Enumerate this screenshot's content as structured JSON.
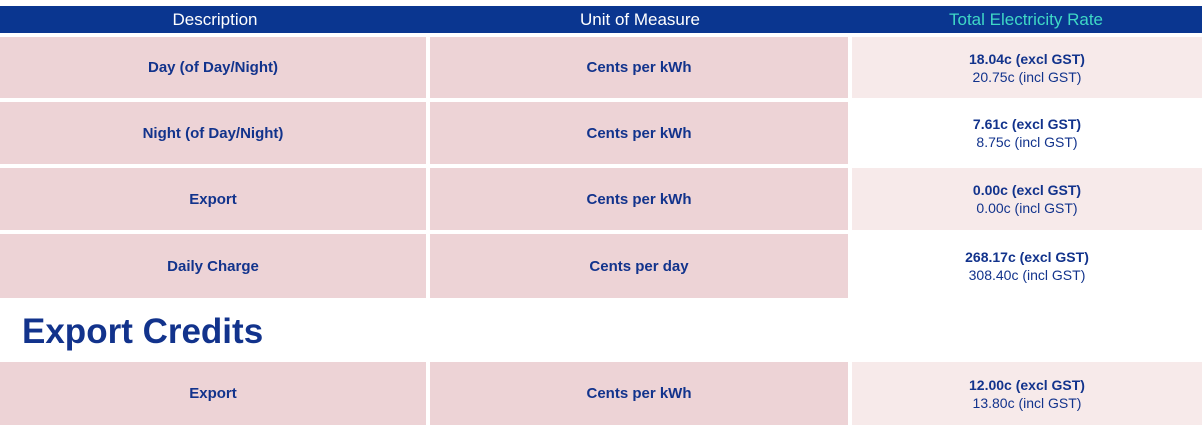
{
  "header": {
    "description": "Description",
    "unit": "Unit of Measure",
    "rate": "Total Electricity Rate"
  },
  "rows": [
    {
      "description": "Day (of Day/Night)",
      "unit": "Cents per kWh",
      "excl": "18.04c (excl GST)",
      "incl": "20.75c (incl GST)"
    },
    {
      "description": "Night (of Day/Night)",
      "unit": "Cents per kWh",
      "excl": "7.61c (excl GST)",
      "incl": "8.75c (incl GST)"
    },
    {
      "description": "Export",
      "unit": "Cents per kWh",
      "excl": "0.00c (excl GST)",
      "incl": "0.00c (incl GST)"
    },
    {
      "description": "Daily Charge",
      "unit": "Cents per day",
      "excl": "268.17c (excl GST)",
      "incl": "308.40c (incl GST)"
    }
  ],
  "export_credits": {
    "title": "Export Credits",
    "rows": [
      {
        "description": "Export",
        "unit": "Cents per kWh",
        "excl": "12.00c (excl GST)",
        "incl": "13.80c (incl GST)"
      }
    ]
  }
}
